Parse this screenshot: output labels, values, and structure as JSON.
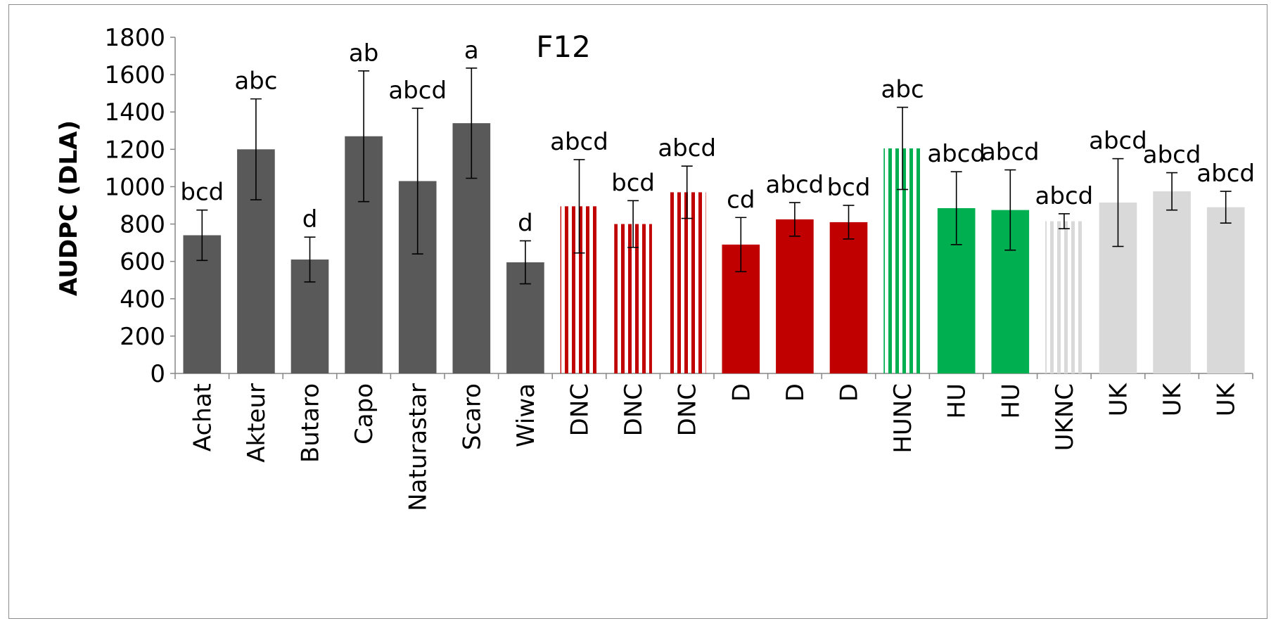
{
  "chart_data": {
    "type": "bar",
    "title": "F12",
    "xlabel": "",
    "ylabel": "AUDPC (DLA)",
    "ylim": [
      0,
      1800
    ],
    "yticks": [
      0,
      200,
      400,
      600,
      800,
      1000,
      1200,
      1400,
      1600,
      1800
    ],
    "grid": false,
    "legend": "none",
    "categories": [
      "Achat",
      "Akteur",
      "Butaro",
      "Capo",
      "Naturastar",
      "Scaro",
      "Wiwa",
      "DNC",
      "DNC",
      "DNC",
      "D",
      "D",
      "D",
      "HUNC",
      "HU",
      "HU",
      "UKNC",
      "UK",
      "UK",
      "UK"
    ],
    "values": [
      740,
      1200,
      610,
      1270,
      1030,
      1340,
      595,
      895,
      800,
      970,
      690,
      825,
      810,
      1205,
      885,
      875,
      815,
      915,
      975,
      890
    ],
    "error": [
      135,
      270,
      120,
      350,
      390,
      295,
      115,
      250,
      125,
      140,
      145,
      90,
      90,
      220,
      195,
      215,
      40,
      235,
      100,
      85
    ],
    "letters": [
      "bcd",
      "abc",
      "d",
      "ab",
      "abcd",
      "a",
      "d",
      "abcd",
      "bcd",
      "abcd",
      "cd",
      "abcd",
      "bcd",
      "abc",
      "abcd",
      "abcd",
      "abcd",
      "abcd",
      "abcd",
      "abcd"
    ],
    "colors": [
      "#595959",
      "#595959",
      "#595959",
      "#595959",
      "#595959",
      "#595959",
      "#595959",
      "#c00000",
      "#c00000",
      "#c00000",
      "#c00000",
      "#c00000",
      "#c00000",
      "#00b050",
      "#00b050",
      "#00b050",
      "#d9d9d9",
      "#d9d9d9",
      "#d9d9d9",
      "#d9d9d9"
    ],
    "striped": [
      false,
      false,
      false,
      false,
      false,
      false,
      false,
      true,
      true,
      true,
      false,
      false,
      false,
      true,
      false,
      false,
      true,
      false,
      false,
      false
    ]
  }
}
